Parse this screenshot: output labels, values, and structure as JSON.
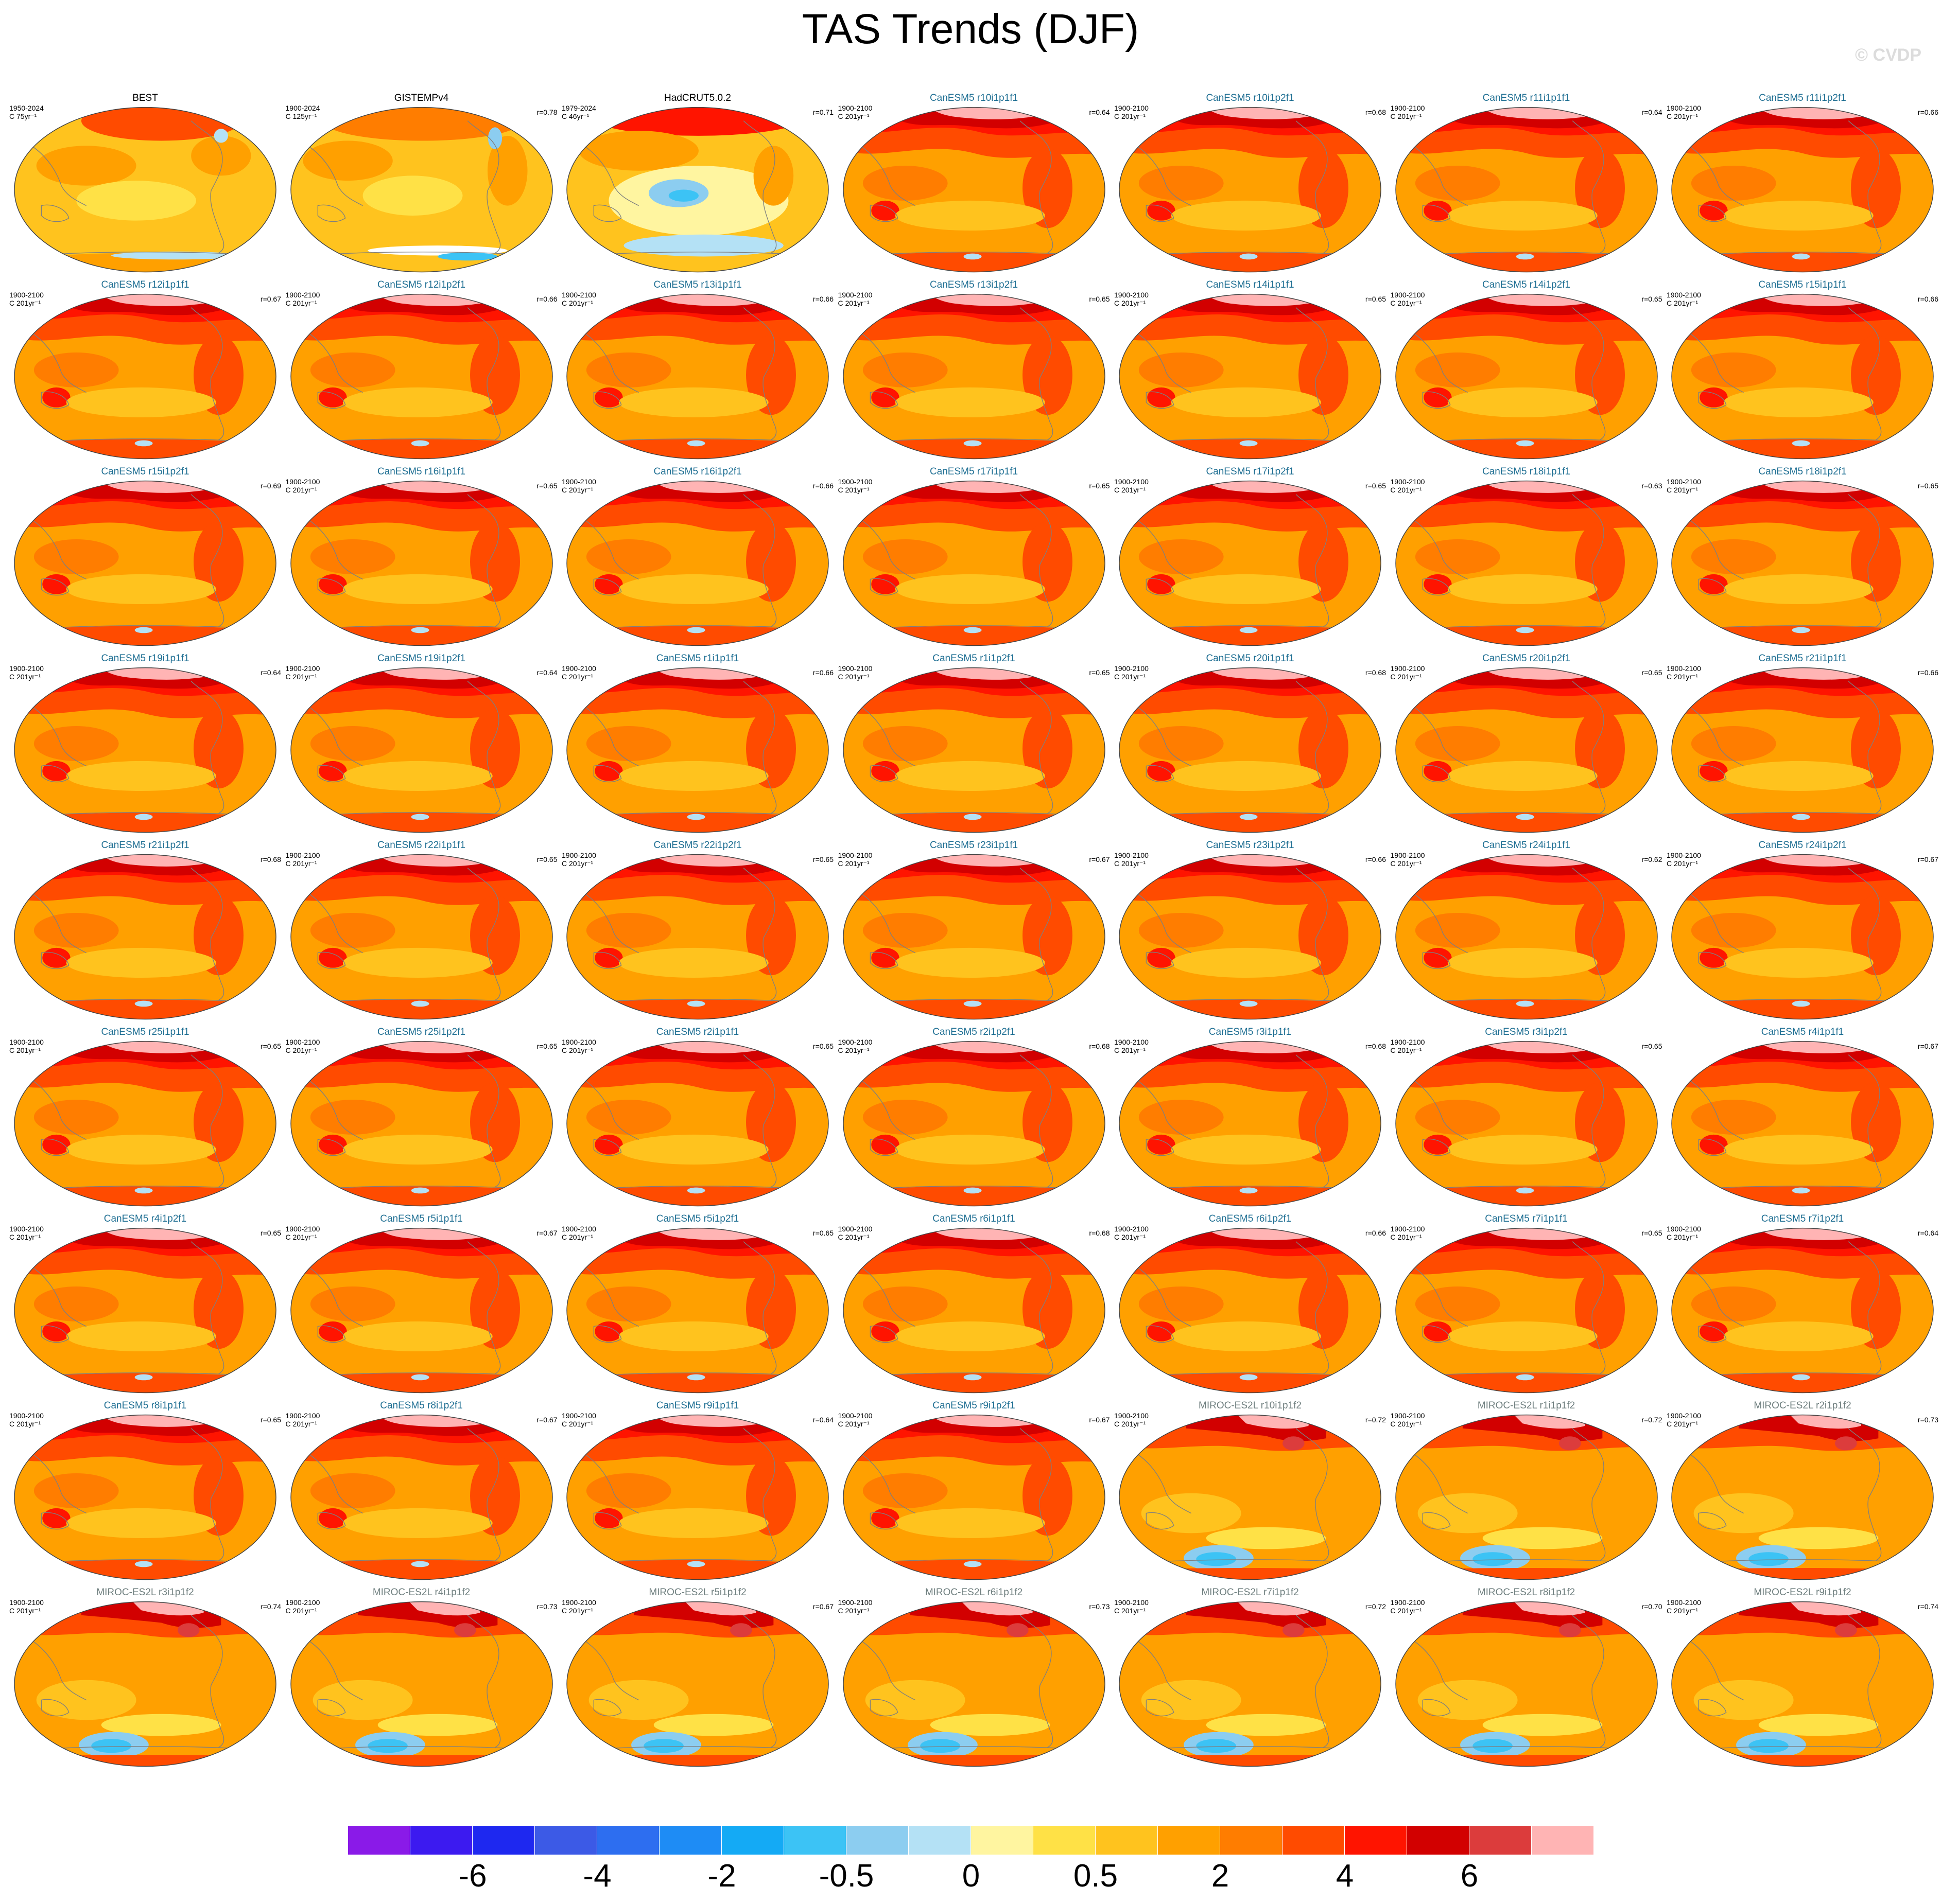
{
  "title": "TAS Trends (DJF)",
  "copyright": "© CVDP",
  "chart_data": {
    "type": "heatmap",
    "variable": "TAS",
    "season": "DJF",
    "layout": {
      "rows": 9,
      "columns": 7
    },
    "panels": [
      {
        "title": "BEST",
        "period": "1950-2024",
        "units": "C 75yr⁻¹",
        "r": "",
        "kind": "obs",
        "pattern": "obs1"
      },
      {
        "title": "GISTEMPv4",
        "period": "1900-2024",
        "units": "C 125yr⁻¹",
        "r": "r=0.78",
        "kind": "obs",
        "pattern": "obs2"
      },
      {
        "title": "HadCRUT5.0.2",
        "period": "1979-2024",
        "units": "C 46yr⁻¹",
        "r": "r=0.71",
        "kind": "obs",
        "pattern": "obs3"
      },
      {
        "title": "CanESM5 r10i1p1f1",
        "period": "1900-2100",
        "units": "C 201yr⁻¹",
        "r": "r=0.64",
        "kind": "canesm",
        "pattern": "canesm"
      },
      {
        "title": "CanESM5 r10i1p2f1",
        "period": "1900-2100",
        "units": "C 201yr⁻¹",
        "r": "r=0.68",
        "kind": "canesm",
        "pattern": "canesm"
      },
      {
        "title": "CanESM5 r11i1p1f1",
        "period": "1900-2100",
        "units": "C 201yr⁻¹",
        "r": "r=0.64",
        "kind": "canesm",
        "pattern": "canesm"
      },
      {
        "title": "CanESM5 r11i1p2f1",
        "period": "1900-2100",
        "units": "C 201yr⁻¹",
        "r": "r=0.66",
        "kind": "canesm",
        "pattern": "canesm"
      },
      {
        "title": "CanESM5 r12i1p1f1",
        "period": "1900-2100",
        "units": "C 201yr⁻¹",
        "r": "r=0.67",
        "kind": "canesm",
        "pattern": "canesm"
      },
      {
        "title": "CanESM5 r12i1p2f1",
        "period": "1900-2100",
        "units": "C 201yr⁻¹",
        "r": "r=0.66",
        "kind": "canesm",
        "pattern": "canesm"
      },
      {
        "title": "CanESM5 r13i1p1f1",
        "period": "1900-2100",
        "units": "C 201yr⁻¹",
        "r": "r=0.66",
        "kind": "canesm",
        "pattern": "canesm"
      },
      {
        "title": "CanESM5 r13i1p2f1",
        "period": "1900-2100",
        "units": "C 201yr⁻¹",
        "r": "r=0.65",
        "kind": "canesm",
        "pattern": "canesm"
      },
      {
        "title": "CanESM5 r14i1p1f1",
        "period": "1900-2100",
        "units": "C 201yr⁻¹",
        "r": "r=0.65",
        "kind": "canesm",
        "pattern": "canesm"
      },
      {
        "title": "CanESM5 r14i1p2f1",
        "period": "1900-2100",
        "units": "C 201yr⁻¹",
        "r": "r=0.65",
        "kind": "canesm",
        "pattern": "canesm"
      },
      {
        "title": "CanESM5 r15i1p1f1",
        "period": "1900-2100",
        "units": "C 201yr⁻¹",
        "r": "r=0.66",
        "kind": "canesm",
        "pattern": "canesm"
      },
      {
        "title": "CanESM5 r15i1p2f1",
        "period": "",
        "units": "",
        "r": "r=0.69",
        "kind": "canesm",
        "pattern": "canesm"
      },
      {
        "title": "CanESM5 r16i1p1f1",
        "period": "1900-2100",
        "units": "C 201yr⁻¹",
        "r": "r=0.65",
        "kind": "canesm",
        "pattern": "canesm"
      },
      {
        "title": "CanESM5 r16i1p2f1",
        "period": "1900-2100",
        "units": "C 201yr⁻¹",
        "r": "r=0.66",
        "kind": "canesm",
        "pattern": "canesm"
      },
      {
        "title": "CanESM5 r17i1p1f1",
        "period": "1900-2100",
        "units": "C 201yr⁻¹",
        "r": "r=0.65",
        "kind": "canesm",
        "pattern": "canesm"
      },
      {
        "title": "CanESM5 r17i1p2f1",
        "period": "1900-2100",
        "units": "C 201yr⁻¹",
        "r": "r=0.65",
        "kind": "canesm",
        "pattern": "canesm"
      },
      {
        "title": "CanESM5 r18i1p1f1",
        "period": "1900-2100",
        "units": "C 201yr⁻¹",
        "r": "r=0.63",
        "kind": "canesm",
        "pattern": "canesm"
      },
      {
        "title": "CanESM5 r18i1p2f1",
        "period": "1900-2100",
        "units": "C 201yr⁻¹",
        "r": "r=0.65",
        "kind": "canesm",
        "pattern": "canesm"
      },
      {
        "title": "CanESM5 r19i1p1f1",
        "period": "1900-2100",
        "units": "C 201yr⁻¹",
        "r": "r=0.64",
        "kind": "canesm",
        "pattern": "canesm"
      },
      {
        "title": "CanESM5 r19i1p2f1",
        "period": "1900-2100",
        "units": "C 201yr⁻¹",
        "r": "r=0.64",
        "kind": "canesm",
        "pattern": "canesm"
      },
      {
        "title": "CanESM5 r1i1p1f1",
        "period": "1900-2100",
        "units": "C 201yr⁻¹",
        "r": "r=0.66",
        "kind": "canesm",
        "pattern": "canesm"
      },
      {
        "title": "CanESM5 r1i1p2f1",
        "period": "1900-2100",
        "units": "C 201yr⁻¹",
        "r": "r=0.65",
        "kind": "canesm",
        "pattern": "canesm"
      },
      {
        "title": "CanESM5 r20i1p1f1",
        "period": "1900-2100",
        "units": "C 201yr⁻¹",
        "r": "r=0.68",
        "kind": "canesm",
        "pattern": "canesm"
      },
      {
        "title": "CanESM5 r20i1p2f1",
        "period": "1900-2100",
        "units": "C 201yr⁻¹",
        "r": "r=0.65",
        "kind": "canesm",
        "pattern": "canesm"
      },
      {
        "title": "CanESM5 r21i1p1f1",
        "period": "1900-2100",
        "units": "C 201yr⁻¹",
        "r": "r=0.66",
        "kind": "canesm",
        "pattern": "canesm"
      },
      {
        "title": "CanESM5 r21i1p2f1",
        "period": "",
        "units": "",
        "r": "r=0.68",
        "kind": "canesm",
        "pattern": "canesm"
      },
      {
        "title": "CanESM5 r22i1p1f1",
        "period": "1900-2100",
        "units": "C 201yr⁻¹",
        "r": "r=0.65",
        "kind": "canesm",
        "pattern": "canesm"
      },
      {
        "title": "CanESM5 r22i1p2f1",
        "period": "1900-2100",
        "units": "C 201yr⁻¹",
        "r": "r=0.65",
        "kind": "canesm",
        "pattern": "canesm"
      },
      {
        "title": "CanESM5 r23i1p1f1",
        "period": "1900-2100",
        "units": "C 201yr⁻¹",
        "r": "r=0.67",
        "kind": "canesm",
        "pattern": "canesm"
      },
      {
        "title": "CanESM5 r23i1p2f1",
        "period": "1900-2100",
        "units": "C 201yr⁻¹",
        "r": "r=0.66",
        "kind": "canesm",
        "pattern": "canesm"
      },
      {
        "title": "CanESM5 r24i1p1f1",
        "period": "1900-2100",
        "units": "C 201yr⁻¹",
        "r": "r=0.62",
        "kind": "canesm",
        "pattern": "canesm"
      },
      {
        "title": "CanESM5 r24i1p2f1",
        "period": "1900-2100",
        "units": "C 201yr⁻¹",
        "r": "r=0.67",
        "kind": "canesm",
        "pattern": "canesm"
      },
      {
        "title": "CanESM5 r25i1p1f1",
        "period": "1900-2100",
        "units": "C 201yr⁻¹",
        "r": "r=0.65",
        "kind": "canesm",
        "pattern": "canesm"
      },
      {
        "title": "CanESM5 r25i1p2f1",
        "period": "1900-2100",
        "units": "C 201yr⁻¹",
        "r": "r=0.65",
        "kind": "canesm",
        "pattern": "canesm"
      },
      {
        "title": "CanESM5 r2i1p1f1",
        "period": "1900-2100",
        "units": "C 201yr⁻¹",
        "r": "r=0.65",
        "kind": "canesm",
        "pattern": "canesm"
      },
      {
        "title": "CanESM5 r2i1p2f1",
        "period": "1900-2100",
        "units": "C 201yr⁻¹",
        "r": "r=0.68",
        "kind": "canesm",
        "pattern": "canesm"
      },
      {
        "title": "CanESM5 r3i1p1f1",
        "period": "1900-2100",
        "units": "C 201yr⁻¹",
        "r": "r=0.68",
        "kind": "canesm",
        "pattern": "canesm"
      },
      {
        "title": "CanESM5 r3i1p2f1",
        "period": "1900-2100",
        "units": "C 201yr⁻¹",
        "r": "r=0.65",
        "kind": "canesm",
        "pattern": "canesm"
      },
      {
        "title": "CanESM5 r4i1p1f1",
        "period": "",
        "units": "",
        "r": "r=0.67",
        "kind": "canesm",
        "pattern": "canesm"
      },
      {
        "title": "CanESM5 r4i1p2f1",
        "period": "1900-2100",
        "units": "C 201yr⁻¹",
        "r": "r=0.65",
        "kind": "canesm",
        "pattern": "canesm"
      },
      {
        "title": "CanESM5 r5i1p1f1",
        "period": "1900-2100",
        "units": "C 201yr⁻¹",
        "r": "r=0.67",
        "kind": "canesm",
        "pattern": "canesm"
      },
      {
        "title": "CanESM5 r5i1p2f1",
        "period": "1900-2100",
        "units": "C 201yr⁻¹",
        "r": "r=0.65",
        "kind": "canesm",
        "pattern": "canesm"
      },
      {
        "title": "CanESM5 r6i1p1f1",
        "period": "1900-2100",
        "units": "C 201yr⁻¹",
        "r": "r=0.68",
        "kind": "canesm",
        "pattern": "canesm"
      },
      {
        "title": "CanESM5 r6i1p2f1",
        "period": "1900-2100",
        "units": "C 201yr⁻¹",
        "r": "r=0.66",
        "kind": "canesm",
        "pattern": "canesm"
      },
      {
        "title": "CanESM5 r7i1p1f1",
        "period": "1900-2100",
        "units": "C 201yr⁻¹",
        "r": "r=0.65",
        "kind": "canesm",
        "pattern": "canesm"
      },
      {
        "title": "CanESM5 r7i1p2f1",
        "period": "1900-2100",
        "units": "C 201yr⁻¹",
        "r": "r=0.64",
        "kind": "canesm",
        "pattern": "canesm"
      },
      {
        "title": "CanESM5 r8i1p1f1",
        "period": "1900-2100",
        "units": "C 201yr⁻¹",
        "r": "r=0.65",
        "kind": "canesm",
        "pattern": "canesm"
      },
      {
        "title": "CanESM5 r8i1p2f1",
        "period": "1900-2100",
        "units": "C 201yr⁻¹",
        "r": "r=0.67",
        "kind": "canesm",
        "pattern": "canesm"
      },
      {
        "title": "CanESM5 r9i1p1f1",
        "period": "1900-2100",
        "units": "C 201yr⁻¹",
        "r": "r=0.64",
        "kind": "canesm",
        "pattern": "canesm"
      },
      {
        "title": "CanESM5 r9i1p2f1",
        "period": "1900-2100",
        "units": "C 201yr⁻¹",
        "r": "r=0.67",
        "kind": "canesm",
        "pattern": "canesm"
      },
      {
        "title": "MIROC-ES2L r10i1p1f2",
        "period": "1900-2100",
        "units": "C 201yr⁻¹",
        "r": "r=0.72",
        "kind": "miroc",
        "pattern": "miroc"
      },
      {
        "title": "MIROC-ES2L r1i1p1f2",
        "period": "1900-2100",
        "units": "C 201yr⁻¹",
        "r": "r=0.72",
        "kind": "miroc",
        "pattern": "miroc"
      },
      {
        "title": "MIROC-ES2L r2i1p1f2",
        "period": "1900-2100",
        "units": "C 201yr⁻¹",
        "r": "r=0.73",
        "kind": "miroc",
        "pattern": "miroc"
      },
      {
        "title": "MIROC-ES2L r3i1p1f2",
        "period": "1900-2100",
        "units": "C 201yr⁻¹",
        "r": "r=0.74",
        "kind": "miroc",
        "pattern": "miroc"
      },
      {
        "title": "MIROC-ES2L r4i1p1f2",
        "period": "1900-2100",
        "units": "C 201yr⁻¹",
        "r": "r=0.73",
        "kind": "miroc",
        "pattern": "miroc"
      },
      {
        "title": "MIROC-ES2L r5i1p1f2",
        "period": "1900-2100",
        "units": "C 201yr⁻¹",
        "r": "r=0.67",
        "kind": "miroc",
        "pattern": "miroc"
      },
      {
        "title": "MIROC-ES2L r6i1p1f2",
        "period": "1900-2100",
        "units": "C 201yr⁻¹",
        "r": "r=0.73",
        "kind": "miroc",
        "pattern": "miroc"
      },
      {
        "title": "MIROC-ES2L r7i1p1f2",
        "period": "1900-2100",
        "units": "C 201yr⁻¹",
        "r": "r=0.72",
        "kind": "miroc",
        "pattern": "miroc"
      },
      {
        "title": "MIROC-ES2L r8i1p1f2",
        "period": "1900-2100",
        "units": "C 201yr⁻¹",
        "r": "r=0.70",
        "kind": "miroc",
        "pattern": "miroc"
      },
      {
        "title": "MIROC-ES2L r9i1p1f2",
        "period": "1900-2100",
        "units": "C 201yr⁻¹",
        "r": "r=0.74",
        "kind": "miroc",
        "pattern": "miroc"
      }
    ],
    "colorbar": {
      "colors": [
        "#8a1ae8",
        "#3c1af0",
        "#1e28f0",
        "#3c5ae6",
        "#2d6ef0",
        "#1e8cf5",
        "#14aaf5",
        "#3cc3f5",
        "#8ccdf0",
        "#b4e1f5",
        "#fff5a0",
        "#ffe146",
        "#ffc31e",
        "#ffa000",
        "#ff7d00",
        "#ff4b00",
        "#ff1400",
        "#d20000",
        "#dc3c3c",
        "#ffb4b4"
      ],
      "tick_labels": [
        "-6",
        "-4",
        "-2",
        "-0.5",
        "0",
        "0.5",
        "2",
        "4",
        "6"
      ]
    }
  }
}
